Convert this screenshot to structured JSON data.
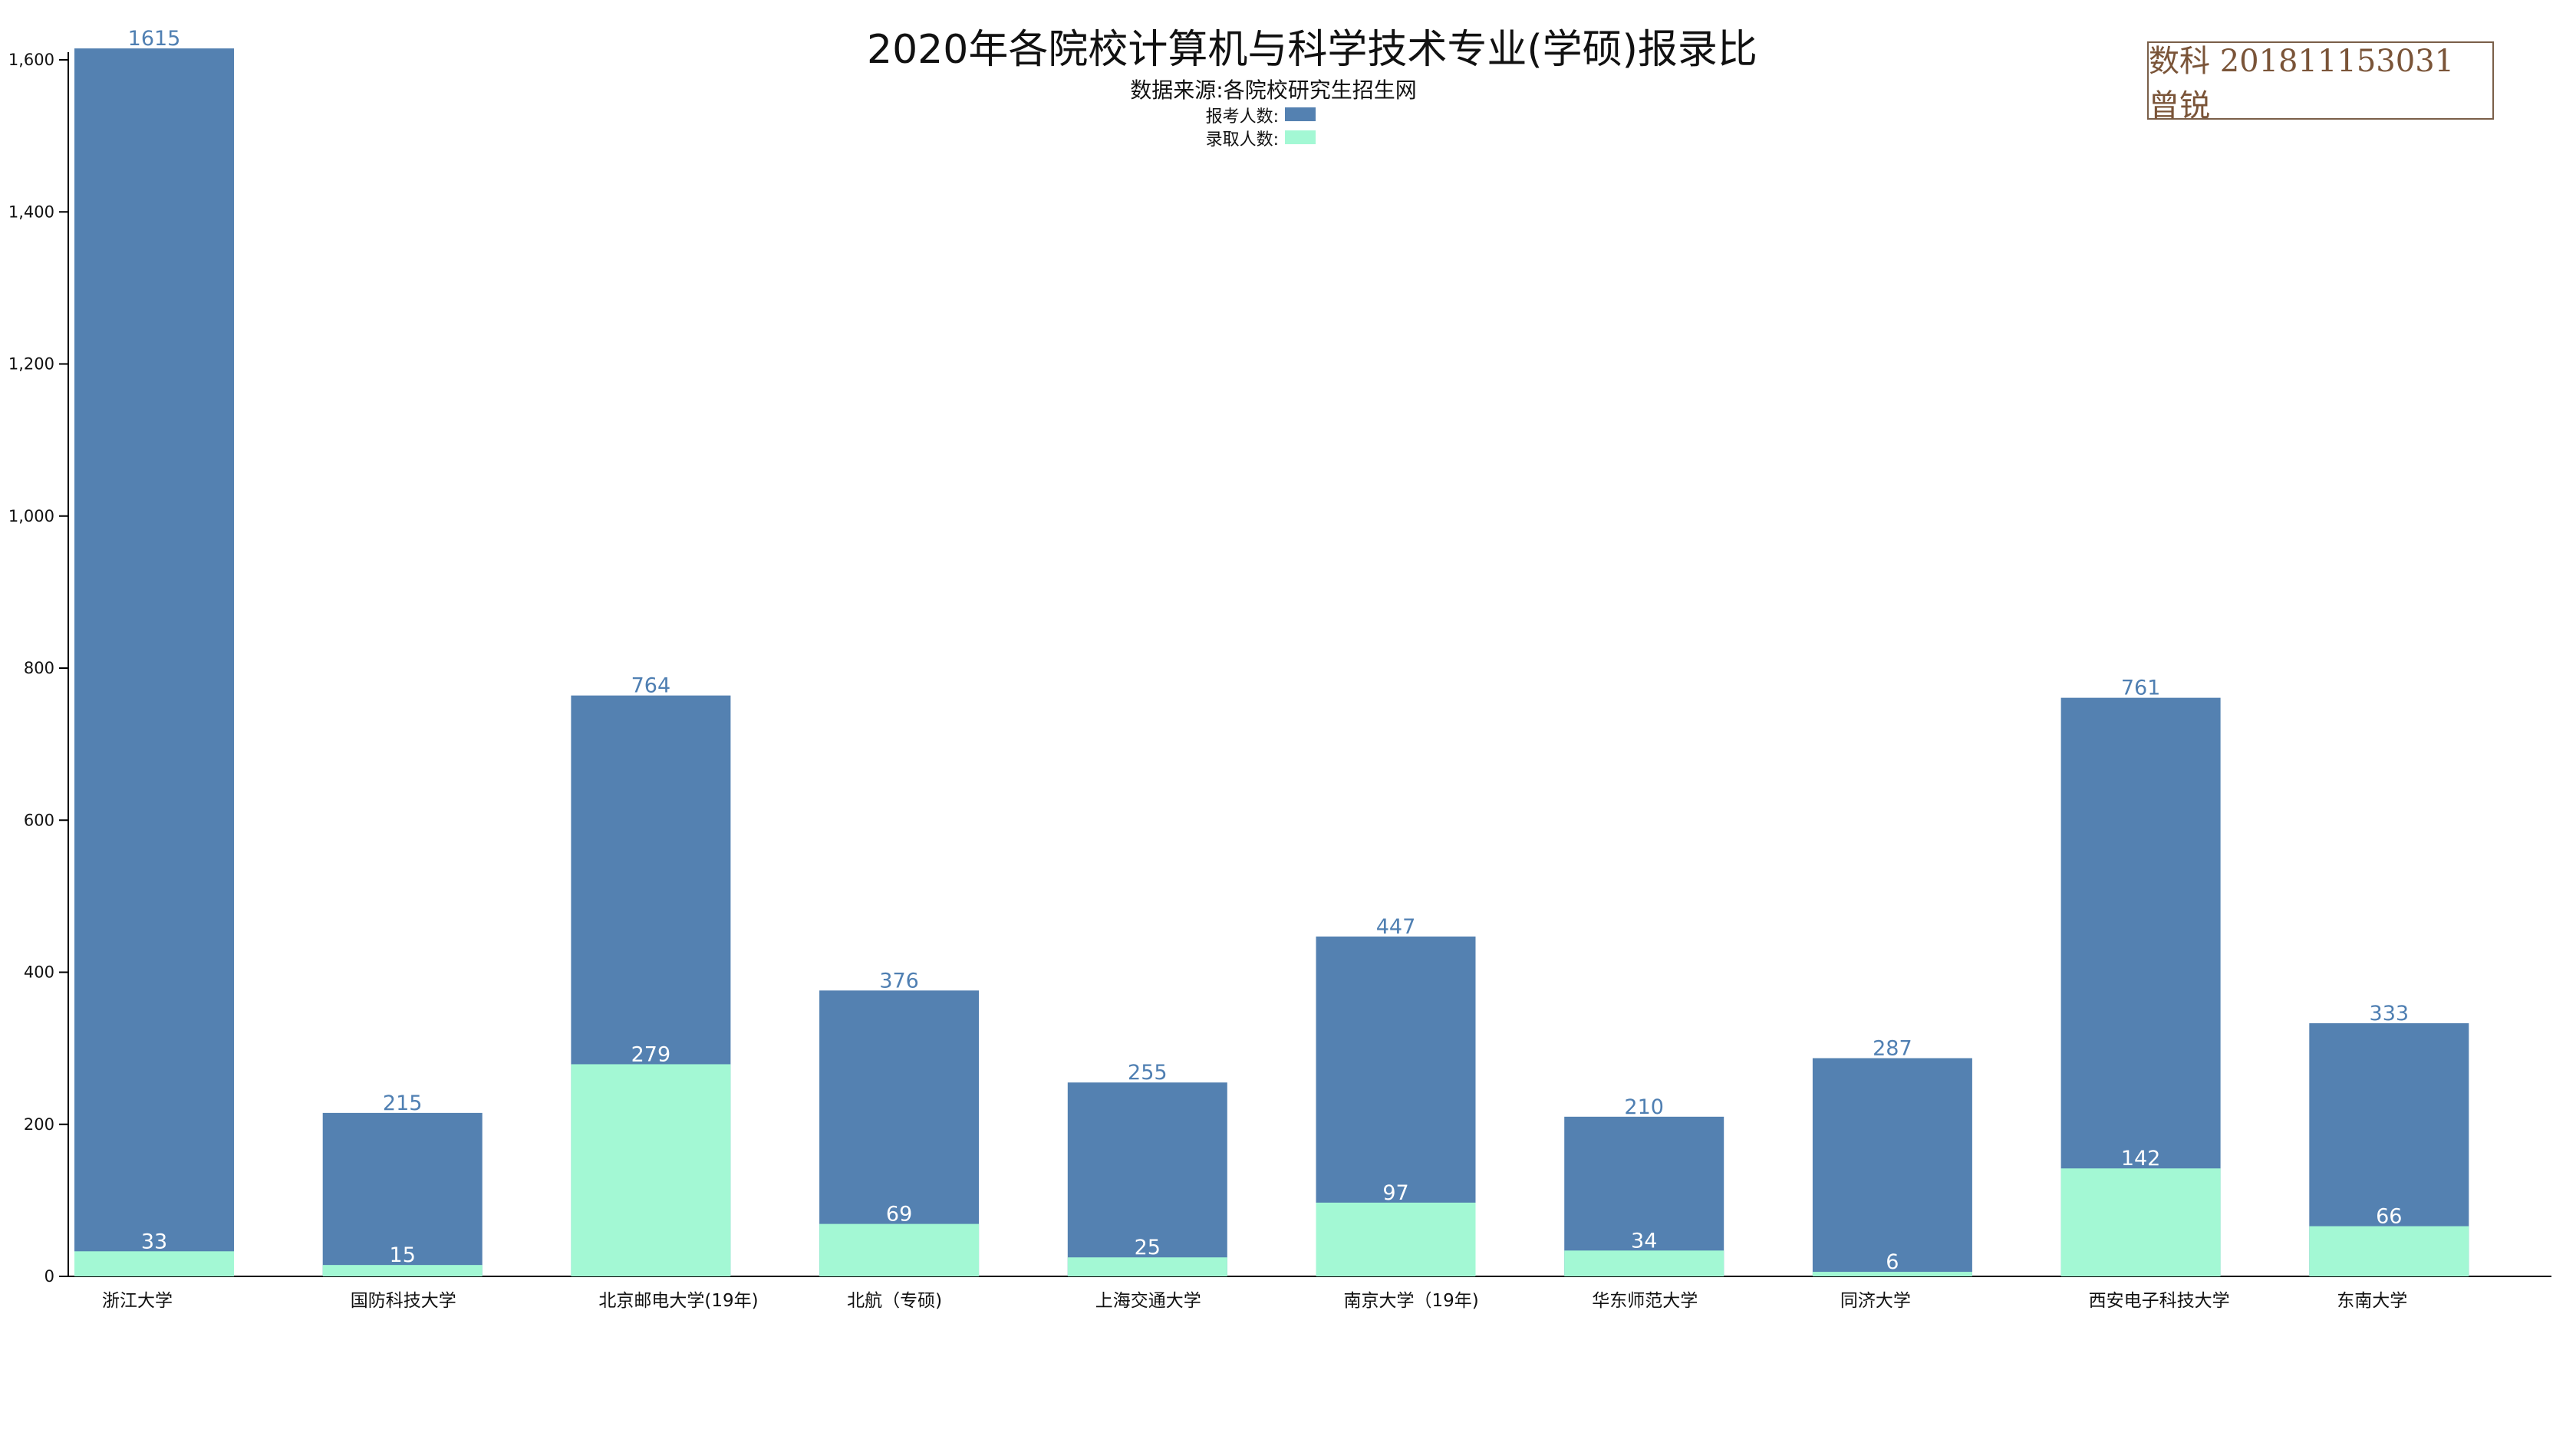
{
  "chart_data": {
    "type": "bar",
    "stacked": "overlay",
    "title": "2020年各院校计算机与科学技术专业(学硕)报录比",
    "subtitle": "数据来源:各院校研究生招生网",
    "categories": [
      "浙江大学",
      "国防科技大学",
      "北京邮电大学(19年)",
      "北航（专硕)",
      "上海交通大学",
      "南京大学（19年)",
      "华东师范大学",
      "同济大学",
      "西安电子科技大学",
      "东南大学"
    ],
    "series": [
      {
        "name": "报考人数:",
        "color": "#5481b1",
        "values": [
          1615,
          215,
          764,
          376,
          255,
          447,
          210,
          287,
          761,
          333
        ]
      },
      {
        "name": "录取人数:",
        "color": "#a3f8d4",
        "values": [
          33,
          15,
          279,
          69,
          25,
          97,
          34,
          6,
          142,
          66
        ]
      }
    ],
    "ylim": [
      0,
      1600
    ],
    "yticks": [
      "0",
      "200",
      "400",
      "600",
      "800",
      "1,000",
      "1,200",
      "1,400",
      "1,600"
    ],
    "ytick_values": [
      0,
      200,
      400,
      600,
      800,
      1000,
      1200,
      1400,
      1600
    ],
    "legend_position": "top-center",
    "grid": false
  },
  "author_tag": "数科 201811153031 曾锐"
}
